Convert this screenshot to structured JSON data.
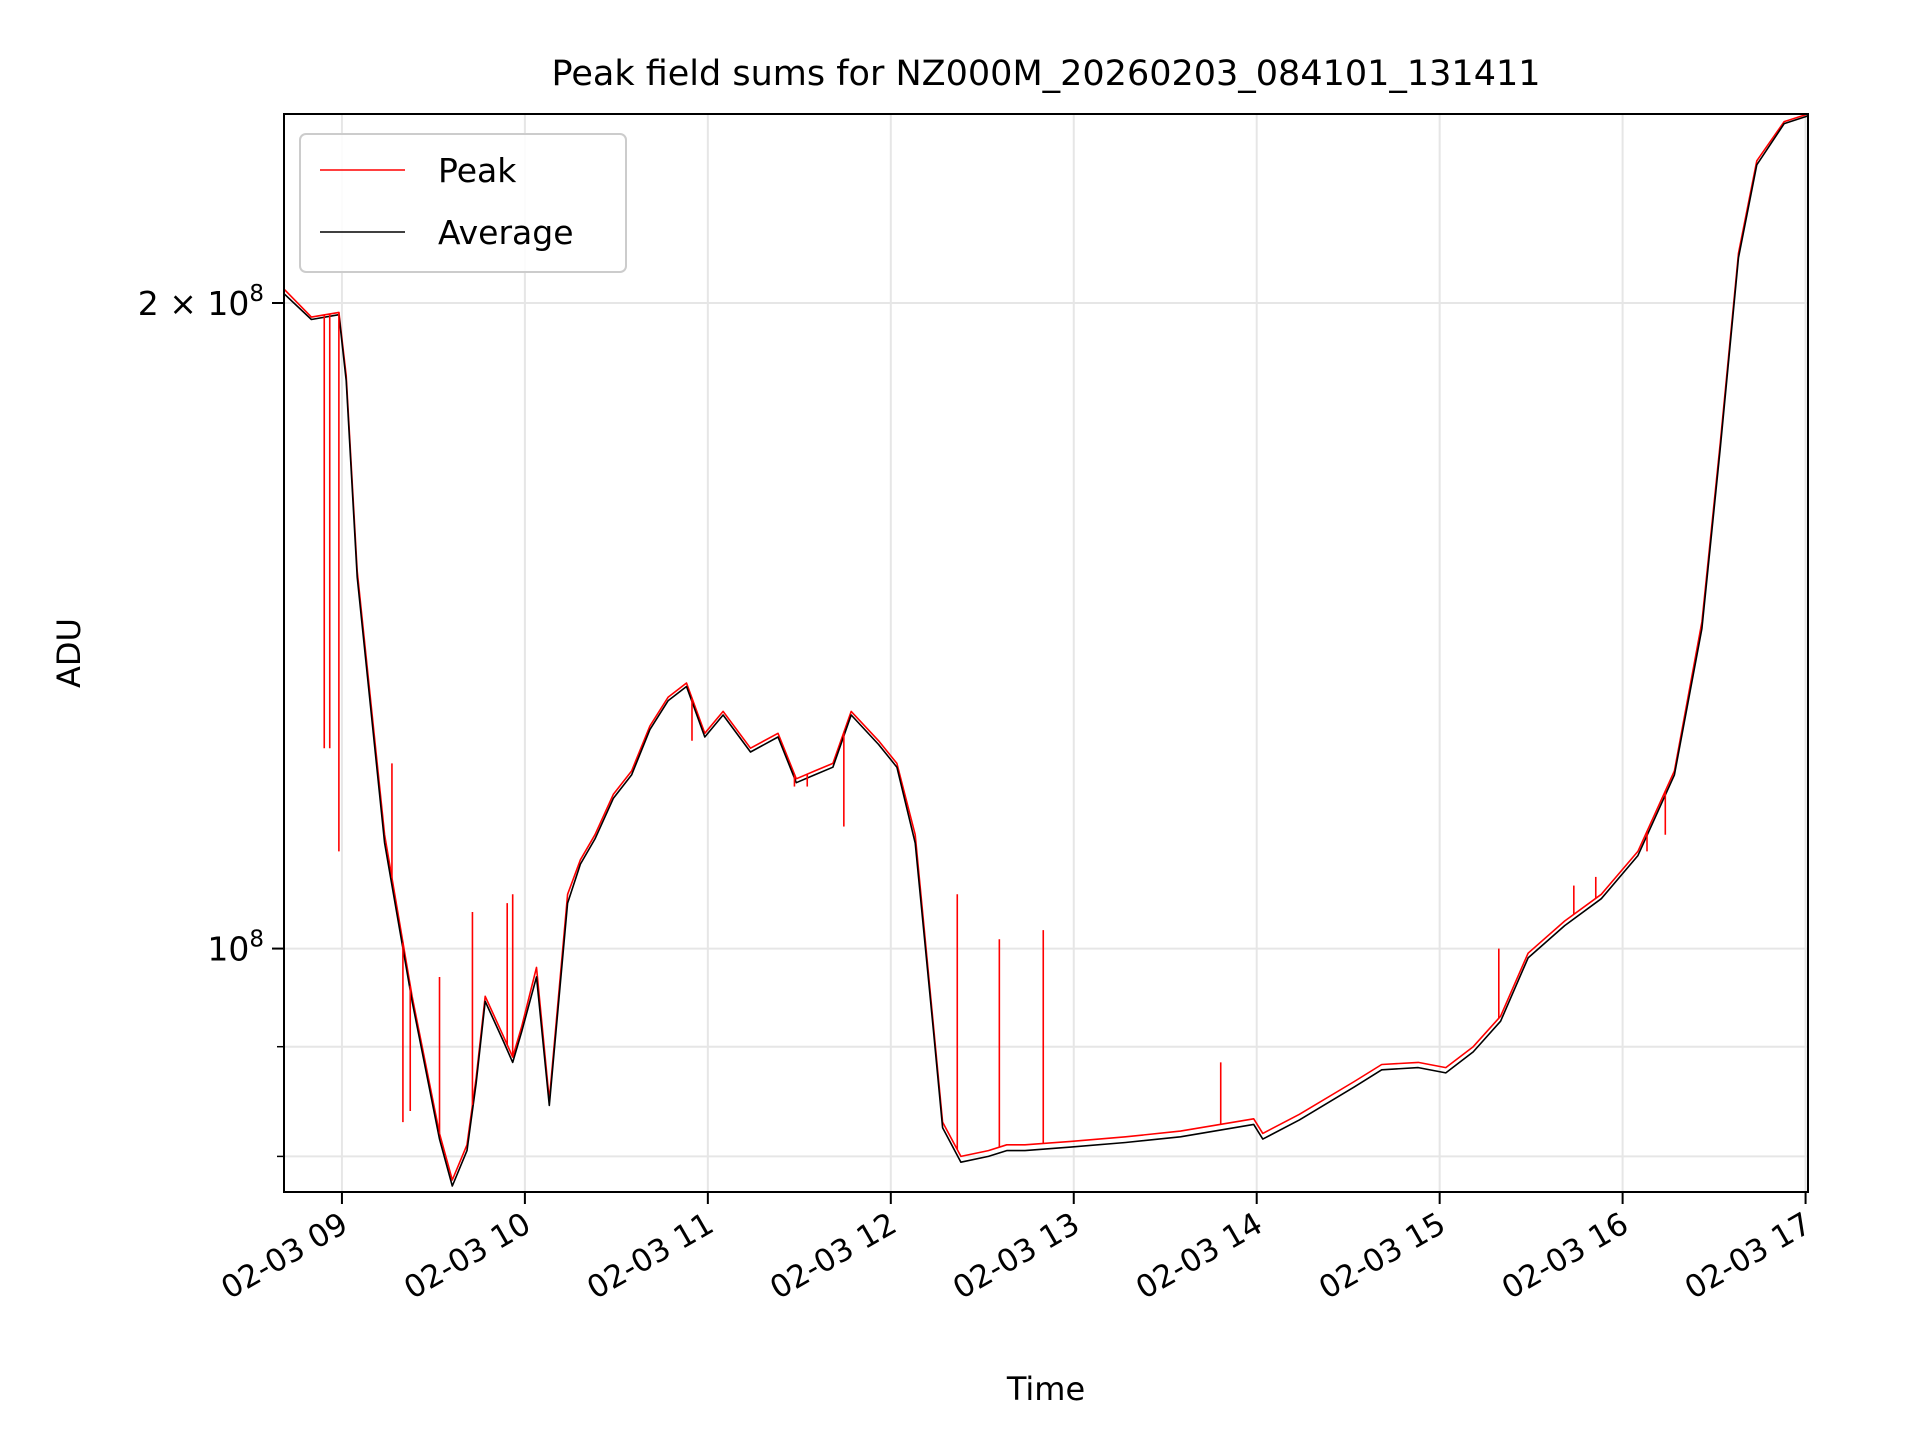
{
  "chart_data": {
    "type": "line",
    "title": "Peak field sums for NZ000M_20260203_084101_131411",
    "xlabel": "Time",
    "ylabel": "ADU",
    "yscale": "log",
    "grid": true,
    "legend_position": "top-left",
    "x_unit": "hours since 2026-02-03 08:41",
    "xlim": [
      0,
      8.33
    ],
    "ylim": [
      77000000,
      245000000
    ],
    "x_ticks": [
      {
        "value": 0.3167,
        "label": "02-03 09"
      },
      {
        "value": 1.3167,
        "label": "02-03 10"
      },
      {
        "value": 2.3167,
        "label": "02-03 11"
      },
      {
        "value": 3.3167,
        "label": "02-03 12"
      },
      {
        "value": 4.3167,
        "label": "02-03 13"
      },
      {
        "value": 5.3167,
        "label": "02-03 14"
      },
      {
        "value": 6.3167,
        "label": "02-03 15"
      },
      {
        "value": 7.3167,
        "label": "02-03 16"
      },
      {
        "value": 8.3167,
        "label": "02-03 17"
      }
    ],
    "y_major_ticks": [
      {
        "value": 100000000,
        "mantissa": "",
        "exponent": "8"
      },
      {
        "value": 200000000,
        "mantissa": "2",
        "exponent": "8"
      }
    ],
    "y_minor_ticks": [
      80000000,
      90000000
    ],
    "series": [
      {
        "name": "Peak",
        "color": "#ff0000",
        "x": [
          0.0,
          0.15,
          0.3,
          0.34,
          0.4,
          0.55,
          0.7,
          0.85,
          0.92,
          1.0,
          1.05,
          1.1,
          1.2,
          1.25,
          1.3,
          1.38,
          1.45,
          1.55,
          1.62,
          1.7,
          1.8,
          1.9,
          2.0,
          2.1,
          2.2,
          2.3,
          2.4,
          2.55,
          2.7,
          2.8,
          2.9,
          3.0,
          3.1,
          3.25,
          3.35,
          3.45,
          3.55,
          3.6,
          3.7,
          3.85,
          3.95,
          4.05,
          4.3,
          4.6,
          4.9,
          5.3,
          5.35,
          5.55,
          5.85,
          6.0,
          6.2,
          6.35,
          6.5,
          6.65,
          6.8,
          7.0,
          7.2,
          7.4,
          7.6,
          7.75,
          7.85,
          7.95,
          8.05,
          8.2,
          8.33
        ],
        "y": [
          203000000,
          197000000,
          198000000,
          185000000,
          150000000,
          113000000,
          95000000,
          82000000,
          78000000,
          81000000,
          87000000,
          95000000,
          91000000,
          89000000,
          92000000,
          98000000,
          85000000,
          106000000,
          110000000,
          113000000,
          118000000,
          121000000,
          127000000,
          131000000,
          133000000,
          126000000,
          129000000,
          124000000,
          126000000,
          120000000,
          121000000,
          122000000,
          129000000,
          125000000,
          122000000,
          113000000,
          92000000,
          83000000,
          80000000,
          80500000,
          81000000,
          81000000,
          81300000,
          81700000,
          82200000,
          83300000,
          82000000,
          83700000,
          86700000,
          88300000,
          88500000,
          88000000,
          90000000,
          93000000,
          99500000,
          103000000,
          106000000,
          111000000,
          121000000,
          142000000,
          172000000,
          211000000,
          233000000,
          243000000,
          245000000
        ]
      },
      {
        "name": "Average",
        "color": "#000000",
        "x": [
          0.0,
          0.15,
          0.3,
          0.34,
          0.4,
          0.55,
          0.7,
          0.85,
          0.92,
          1.0,
          1.05,
          1.1,
          1.2,
          1.25,
          1.3,
          1.38,
          1.45,
          1.55,
          1.62,
          1.7,
          1.8,
          1.9,
          2.0,
          2.1,
          2.2,
          2.3,
          2.4,
          2.55,
          2.7,
          2.8,
          2.9,
          3.0,
          3.1,
          3.25,
          3.35,
          3.45,
          3.55,
          3.6,
          3.7,
          3.85,
          3.95,
          4.05,
          4.3,
          4.6,
          4.9,
          5.3,
          5.35,
          5.55,
          5.85,
          6.0,
          6.2,
          6.35,
          6.5,
          6.65,
          6.8,
          7.0,
          7.2,
          7.4,
          7.6,
          7.75,
          7.85,
          7.95,
          8.05,
          8.2,
          8.33
        ],
        "y": [
          202000000,
          196500000,
          197500000,
          184000000,
          149000000,
          112000000,
          94500000,
          81500000,
          77500000,
          80500000,
          86500000,
          94500000,
          90500000,
          88500000,
          91500000,
          97000000,
          84500000,
          105000000,
          109500000,
          112500000,
          117500000,
          120500000,
          126500000,
          130500000,
          132500000,
          125500000,
          128500000,
          123500000,
          125500000,
          119500000,
          120500000,
          121500000,
          128500000,
          124500000,
          121500000,
          112000000,
          91500000,
          82500000,
          79500000,
          80000000,
          80500000,
          80500000,
          80800000,
          81200000,
          81700000,
          82800000,
          81500000,
          83200000,
          86200000,
          87800000,
          88000000,
          87500000,
          89500000,
          92500000,
          99000000,
          102500000,
          105500000,
          110500000,
          120500000,
          141000000,
          171000000,
          210000000,
          232000000,
          242500000,
          244500000
        ]
      }
    ],
    "spikes": [
      {
        "x": 0.22,
        "y": 124000000
      },
      {
        "x": 0.25,
        "y": 124000000
      },
      {
        "x": 0.3,
        "y": 111000000
      },
      {
        "x": 0.59,
        "y": 122000000
      },
      {
        "x": 0.65,
        "y": 83000000
      },
      {
        "x": 0.69,
        "y": 84000000
      },
      {
        "x": 0.85,
        "y": 97000000
      },
      {
        "x": 1.03,
        "y": 104000000
      },
      {
        "x": 1.22,
        "y": 105000000
      },
      {
        "x": 1.25,
        "y": 106000000
      },
      {
        "x": 2.23,
        "y": 125000000
      },
      {
        "x": 2.79,
        "y": 119000000
      },
      {
        "x": 2.86,
        "y": 119000000
      },
      {
        "x": 3.06,
        "y": 114000000
      },
      {
        "x": 3.68,
        "y": 106000000
      },
      {
        "x": 3.91,
        "y": 101000000
      },
      {
        "x": 4.15,
        "y": 102000000
      },
      {
        "x": 5.12,
        "y": 88500000
      },
      {
        "x": 6.64,
        "y": 100000000
      },
      {
        "x": 7.05,
        "y": 107000000
      },
      {
        "x": 7.17,
        "y": 108000000
      },
      {
        "x": 7.45,
        "y": 111000000
      },
      {
        "x": 7.55,
        "y": 113000000
      }
    ],
    "legend": [
      {
        "name": "Peak",
        "color": "#ff0000"
      },
      {
        "name": "Average",
        "color": "#000000"
      }
    ]
  }
}
